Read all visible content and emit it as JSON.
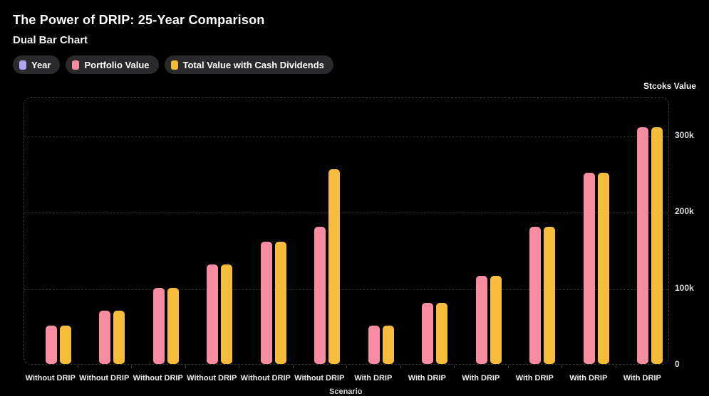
{
  "header": {
    "title": "The Power of DRIP: 25-Year Comparison",
    "subtitle": "Dual Bar Chart"
  },
  "legend": {
    "items": [
      {
        "label": "Year",
        "color": "#b2a4f4"
      },
      {
        "label": "Portfolio Value",
        "color": "#f88ca0"
      },
      {
        "label": "Total Value with Cash Dividends",
        "color": "#f7bc3b"
      }
    ]
  },
  "axes": {
    "y_title": "Stcoks Value",
    "x_title": "Scenario"
  },
  "colors": {
    "background": "#000000",
    "grid": "#333333",
    "plot_border": "#3b3b3b",
    "tick_text": "#dcdcdc"
  },
  "chart_data": {
    "type": "bar",
    "title": "The Power of DRIP: 25-Year Comparison",
    "subtitle": "Dual Bar Chart",
    "xlabel": "Scenario",
    "ylabel": "Stcoks Value",
    "grid": "horizontal-dashed",
    "legend_position": "top-left",
    "ylim": [
      0,
      350000
    ],
    "y_ticks": [
      {
        "value": 300000,
        "label": "300k"
      },
      {
        "value": 200000,
        "label": "200k"
      },
      {
        "value": 100000,
        "label": "100k"
      },
      {
        "value": 0,
        "label": "0"
      }
    ],
    "categories": [
      "Without DRIP",
      "Without DRIP",
      "Without DRIP",
      "Without DRIP",
      "Without DRIP",
      "Without DRIP",
      "With DRIP",
      "With DRIP",
      "With DRIP",
      "With DRIP",
      "With DRIP",
      "With DRIP"
    ],
    "series": [
      {
        "name": "Year",
        "color": "#b2a4f4",
        "values": [
          0,
          0,
          0,
          0,
          0,
          0,
          0,
          0,
          0,
          0,
          0,
          0
        ],
        "note": "Year bars are not visible at this value scale (height ~0)"
      },
      {
        "name": "Portfolio Value",
        "color": "#f88ca0",
        "values": [
          50000,
          70000,
          100000,
          130000,
          160000,
          180000,
          50000,
          80000,
          115000,
          180000,
          250000,
          310000
        ]
      },
      {
        "name": "Total Value with Cash Dividends",
        "color": "#f7bc3b",
        "values": [
          50000,
          70000,
          100000,
          130000,
          160000,
          255000,
          50000,
          80000,
          115000,
          180000,
          250000,
          310000
        ]
      }
    ]
  }
}
